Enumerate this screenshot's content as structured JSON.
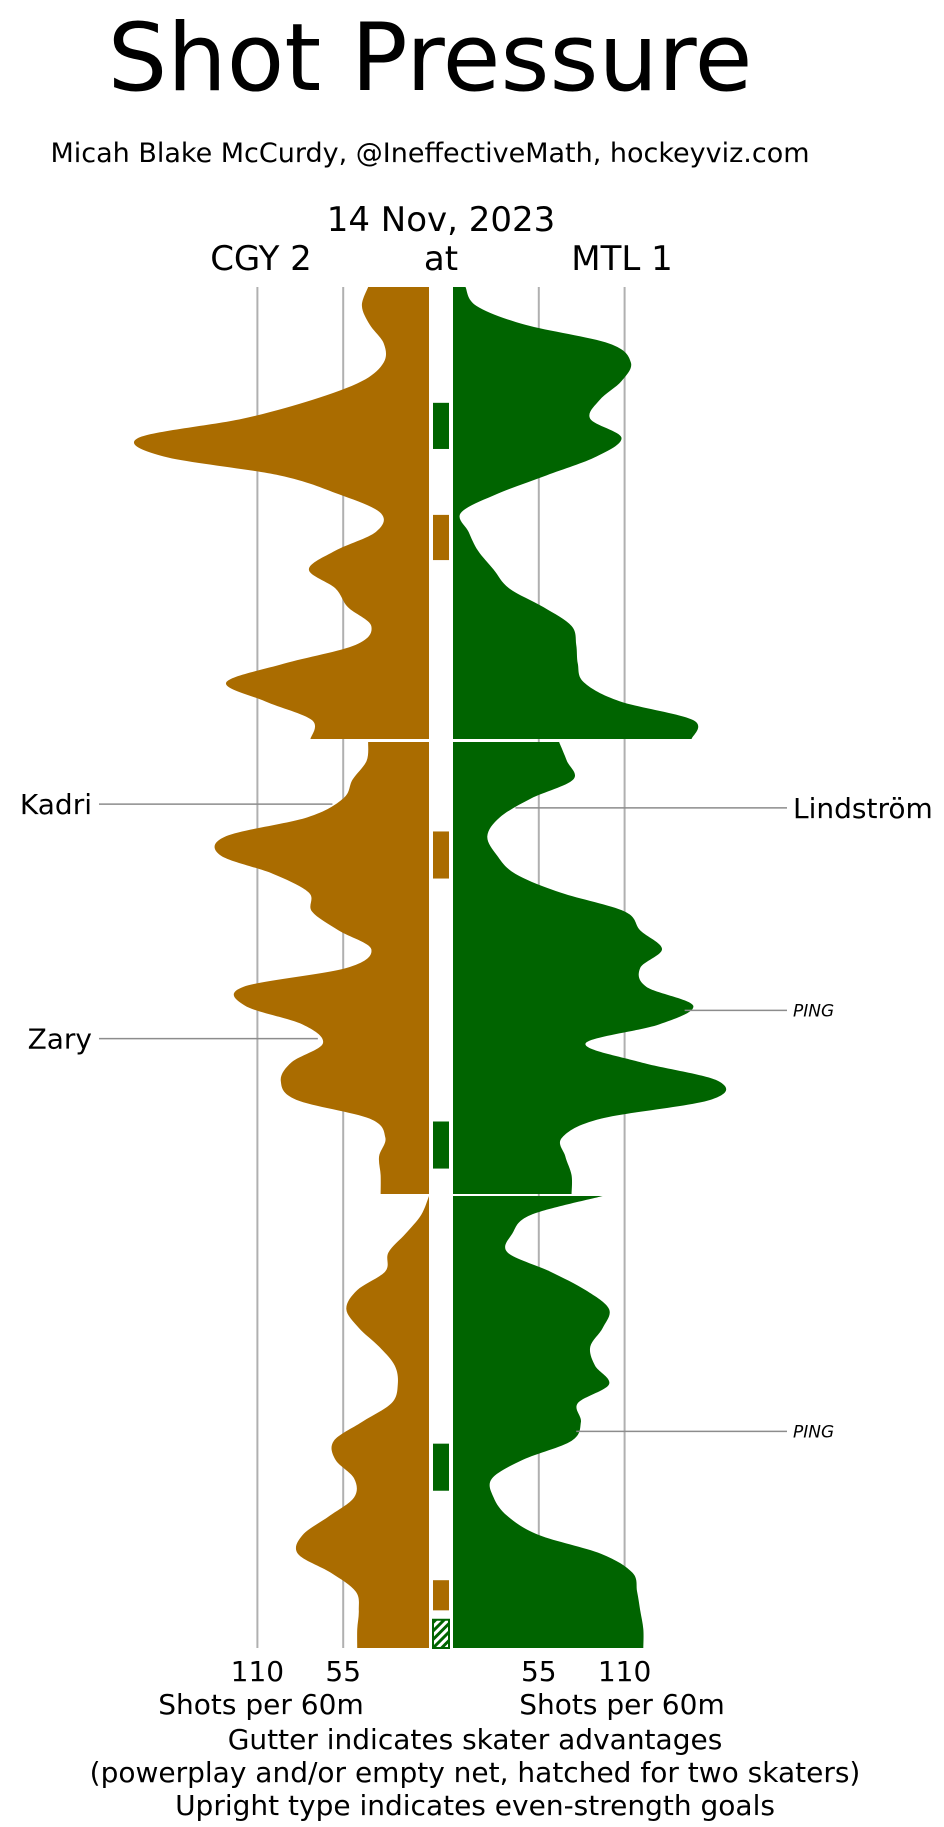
{
  "chart_data": {
    "type": "area",
    "title": "Shot Pressure",
    "subtitle": "Micah Blake McCurdy, @IneffectiveMath, hockeyviz.com",
    "date": "14 Nov, 2023",
    "away": {
      "label": "CGY 2",
      "color": "#aa6c00"
    },
    "at_label": "at",
    "home": {
      "label": "MTL 1",
      "color": "#006400"
    },
    "xlabel": "Shots per 60m",
    "ticks": [
      55,
      110
    ],
    "xlim": [
      0,
      170
    ],
    "periods": 3,
    "series": [
      {
        "name": "CGY 2",
        "values": [
          [
            [
              0,
              39
            ],
            [
              2,
              43
            ],
            [
              4,
              38
            ],
            [
              6,
              29
            ],
            [
              8,
              29
            ],
            [
              10,
              43
            ],
            [
              12,
              75
            ],
            [
              14,
              120
            ],
            [
              16,
              186
            ],
            [
              18,
              170
            ],
            [
              20,
              96
            ],
            [
              22,
              58
            ],
            [
              24,
              31
            ],
            [
              26,
              34
            ],
            [
              28,
              60
            ],
            [
              30,
              77
            ],
            [
              32,
              60
            ],
            [
              34,
              52
            ],
            [
              36,
              37
            ],
            [
              38,
              47
            ],
            [
              40,
              93
            ],
            [
              42,
              130
            ],
            [
              44,
              105
            ],
            [
              46,
              75
            ],
            [
              48,
              76
            ]
          ],
          [
            [
              0,
              39
            ],
            [
              2,
              40
            ],
            [
              4,
              49
            ],
            [
              6,
              55
            ],
            [
              8,
              78
            ],
            [
              10,
              130
            ],
            [
              12,
              134
            ],
            [
              14,
              100
            ],
            [
              16,
              77
            ],
            [
              18,
              75
            ],
            [
              20,
              58
            ],
            [
              22,
              37
            ],
            [
              24,
              53
            ],
            [
              26,
              119
            ],
            [
              28,
              118
            ],
            [
              30,
              81
            ],
            [
              32,
              68
            ],
            [
              34,
              88
            ],
            [
              36,
              95
            ],
            [
              38,
              85
            ],
            [
              40,
              38
            ],
            [
              42,
              28
            ],
            [
              44,
              32
            ],
            [
              46,
              31
            ],
            [
              48,
              31
            ]
          ],
          [
            [
              0,
              0
            ],
            [
              2,
              5
            ],
            [
              4,
              15
            ],
            [
              6,
              26
            ],
            [
              8,
              28
            ],
            [
              10,
              46
            ],
            [
              12,
              53
            ],
            [
              14,
              45
            ],
            [
              16,
              32
            ],
            [
              18,
              22
            ],
            [
              20,
              20
            ],
            [
              22,
              24
            ],
            [
              24,
              43
            ],
            [
              26,
              61
            ],
            [
              28,
              60
            ],
            [
              30,
              48
            ],
            [
              32,
              48
            ],
            [
              34,
              64
            ],
            [
              36,
              81
            ],
            [
              38,
              84
            ],
            [
              40,
              63
            ],
            [
              42,
              47
            ],
            [
              44,
              45
            ],
            [
              46,
              46
            ],
            [
              48,
              46
            ]
          ]
        ]
      },
      {
        "name": "MTL 1",
        "values": [
          [
            [
              0,
              8
            ],
            [
              2,
              15
            ],
            [
              4,
              46
            ],
            [
              6,
              100
            ],
            [
              8,
              114
            ],
            [
              10,
              108
            ],
            [
              12,
              94
            ],
            [
              14,
              88
            ],
            [
              16,
              108
            ],
            [
              18,
              92
            ],
            [
              20,
              60
            ],
            [
              22,
              28
            ],
            [
              24,
              5
            ],
            [
              26,
              10
            ],
            [
              28,
              16
            ],
            [
              30,
              26
            ],
            [
              32,
              36
            ],
            [
              34,
              58
            ],
            [
              36,
              76
            ],
            [
              38,
              79
            ],
            [
              40,
              80
            ],
            [
              42,
              84
            ],
            [
              44,
              107
            ],
            [
              46,
              154
            ],
            [
              48,
              153
            ]
          ],
          [
            [
              0,
              68
            ],
            [
              2,
              73
            ],
            [
              4,
              77
            ],
            [
              6,
              50
            ],
            [
              8,
              30
            ],
            [
              10,
              22
            ],
            [
              12,
              28
            ],
            [
              14,
              40
            ],
            [
              16,
              69
            ],
            [
              18,
              110
            ],
            [
              20,
              120
            ],
            [
              22,
              134
            ],
            [
              24,
              120
            ],
            [
              26,
              124
            ],
            [
              28,
              154
            ],
            [
              30,
              132
            ],
            [
              32,
              85
            ],
            [
              34,
              120
            ],
            [
              36,
              170
            ],
            [
              38,
              165
            ],
            [
              40,
              95
            ],
            [
              42,
              70
            ],
            [
              44,
              72
            ],
            [
              46,
              76
            ],
            [
              48,
              76
            ]
          ],
          [
            [
              0,
              96
            ],
            [
              2,
              50
            ],
            [
              4,
              38
            ],
            [
              6,
              35
            ],
            [
              8,
              62
            ],
            [
              10,
              85
            ],
            [
              12,
              100
            ],
            [
              14,
              96
            ],
            [
              16,
              88
            ],
            [
              18,
              91
            ],
            [
              20,
              100
            ],
            [
              22,
              80
            ],
            [
              24,
              82
            ],
            [
              26,
              76
            ],
            [
              28,
              45
            ],
            [
              30,
              25
            ],
            [
              32,
              26
            ],
            [
              34,
              35
            ],
            [
              36,
              55
            ],
            [
              38,
              95
            ],
            [
              40,
              115
            ],
            [
              42,
              118
            ],
            [
              44,
              120
            ],
            [
              46,
              122
            ],
            [
              48,
              122
            ]
          ]
        ]
      }
    ],
    "gutter": [
      {
        "team": "MTL 1",
        "period": 1,
        "start": 12.3,
        "end": 17.2,
        "hatched": false
      },
      {
        "team": "CGY 2",
        "period": 1,
        "start": 24.2,
        "end": 29.0,
        "hatched": false
      },
      {
        "team": "CGY 2",
        "period": 2,
        "start": 9.5,
        "end": 14.5,
        "hatched": false
      },
      {
        "team": "MTL 1",
        "period": 2,
        "start": 40.3,
        "end": 45.3,
        "hatched": false
      },
      {
        "team": "MTL 1",
        "period": 3,
        "start": 26.3,
        "end": 31.3,
        "hatched": false
      },
      {
        "team": "CGY 2",
        "period": 3,
        "start": 40.8,
        "end": 44.0,
        "hatched": false
      },
      {
        "team": "MTL 1",
        "period": 3,
        "start": 45.0,
        "end": 48.0,
        "hatched": true
      }
    ],
    "goals": [
      {
        "team": "CGY 2",
        "scorer": "Kadri",
        "period": 2,
        "time": 6.6,
        "even_strength": true
      },
      {
        "team": "CGY 2",
        "scorer": "Zary",
        "period": 2,
        "time": 31.5,
        "even_strength": true
      },
      {
        "team": "MTL 1",
        "scorer": "Lindström",
        "period": 2,
        "time": 7.0,
        "even_strength": true
      },
      {
        "team": "MTL 1",
        "scorer": "PING",
        "period": 2,
        "time": 28.5,
        "even_strength": false
      },
      {
        "team": "MTL 1",
        "scorer": "PING",
        "period": 3,
        "time": 25.0,
        "even_strength": false
      }
    ],
    "footer": [
      "Gutter indicates skater advantages",
      "(powerplay and/or empty net, hatched for two skaters)",
      "Upright type indicates even-strength goals"
    ]
  }
}
